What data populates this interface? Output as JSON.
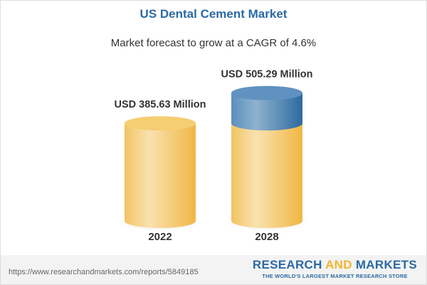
{
  "chart_data": {
    "type": "bar",
    "style": "3d-cylinder",
    "title": "US Dental Cement Market",
    "subtitle": "Market forecast to grow at a CAGR of 4.6%",
    "categories": [
      "2022",
      "2028"
    ],
    "values": [
      385.63,
      505.29
    ],
    "data_labels": [
      "USD 385.63 Million",
      "USD 505.29 Million"
    ],
    "unit": "USD Million",
    "colors": {
      "base": "#f2c45e",
      "growth": "#4f87b8",
      "title": "#2b6aa3"
    },
    "grid": false
  },
  "footer": {
    "url": "https://www.researchandmarkets.com/reports/5849185",
    "logo_part1": "RESEARCH ",
    "logo_part2": "AND",
    "logo_part3": " MARKETS",
    "tagline": "THE WORLD'S LARGEST MARKET RESEARCH STORE"
  }
}
